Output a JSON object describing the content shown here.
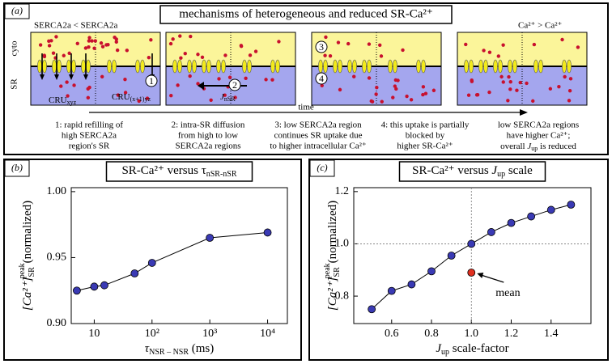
{
  "panel_a": {
    "label": "(a)",
    "title": "mechanisms of heterogeneous and reduced SR-Ca²⁺",
    "left_note": "SERCA2a < SERCA2a",
    "right_note": "Ca²⁺ > Ca²⁺",
    "cyto": "cyto",
    "sr": "SR",
    "cru1": "CRU",
    "cru1_sub": "xyz",
    "cru2": "CRU",
    "cru2_sub": "(x+1)yz",
    "jnsr": "J",
    "jnsr_sub": "nSR",
    "time": "time",
    "steps": [
      "1",
      "2",
      "3",
      "4"
    ],
    "captions": [
      [
        "1: rapid refilling of",
        "high SERCA2a",
        "region's SR"
      ],
      [
        "2: intra-SR diffusion",
        "from high to low",
        "SERCA2a regions"
      ],
      [
        "3: low SERCA2a region",
        "continues SR uptake due",
        "to higher intracellular Ca²⁺"
      ],
      [
        "4: this uptake is partially",
        "blocked by",
        "higher SR-Ca²⁺"
      ],
      [
        "low SERCA2a regions",
        "have higher Ca²⁺;"
      ]
    ],
    "last_line": {
      "pre": "overall ",
      "j": "J",
      "sub": "up",
      "post": " is reduced"
    }
  },
  "chart_data": [
    {
      "type": "line",
      "label": "(b)",
      "title": "SR-Ca²⁺ versus τ",
      "title_sub": "nSR-nSR",
      "xlabel": "τ",
      "xlabel_sub": "NSR – NSR",
      "xlabel_unit": " (ms)",
      "ylabel": "[Ca²⁺]",
      "ylabel_sub": "SR",
      "ylabel_sup": "peak",
      "ylabel_unit": "(normalized)",
      "x": [
        5,
        10,
        15,
        50,
        100,
        1000,
        10000
      ],
      "series": [
        {
          "color": "#3a3ab4",
          "values": [
            0.925,
            0.928,
            0.929,
            0.938,
            0.946,
            0.965,
            0.969
          ]
        }
      ],
      "xscale": "log",
      "xlim": [
        4,
        22000
      ],
      "xticks": [
        10,
        {
          "value": 100,
          "label": "10²"
        },
        {
          "value": 1000,
          "label": "10³"
        },
        {
          "value": 10000,
          "label": "10⁴"
        }
      ],
      "ylim": [
        0.9,
        1.003
      ],
      "yticks": [
        {
          "value": 0.9,
          "label": "0.90"
        },
        0.95,
        {
          "value": 1,
          "label": "1.00"
        }
      ]
    },
    {
      "type": "line",
      "label": "(c)",
      "title": "SR-Ca²⁺ versus ",
      "title_j": "J",
      "title_sub": "up",
      "title_post": " scale",
      "xlabel": "J",
      "xlabel_sub": "up",
      "xlabel_unit": " scale-factor",
      "ylabel": "[Ca²⁺]",
      "ylabel_sub": "SR",
      "ylabel_sup": "peak",
      "ylabel_unit": "(normalized)",
      "x": [
        0.5,
        0.6,
        0.7,
        0.8,
        0.9,
        1.0,
        1.1,
        1.2,
        1.3,
        1.4,
        1.5
      ],
      "series": [
        {
          "color": "#3a3ab4",
          "values": [
            0.75,
            0.82,
            0.845,
            0.895,
            0.955,
            1.0,
            1.045,
            1.08,
            1.105,
            1.13,
            1.15
          ]
        }
      ],
      "annotations": [
        {
          "text": "mean",
          "x": 1.0,
          "y": 0.89,
          "color": "#e03020"
        }
      ],
      "hlines": [
        1.0
      ],
      "vlines": [
        1.0
      ],
      "xlim": [
        0.41,
        1.6
      ],
      "xticks": [
        0.6,
        0.8,
        {
          "value": 1,
          "label": "1.0"
        },
        1.2,
        1.4
      ],
      "ylim": [
        0.695,
        1.215
      ],
      "yticks": [
        0.8,
        {
          "value": 1,
          "label": "1.0"
        },
        1.2
      ]
    }
  ]
}
